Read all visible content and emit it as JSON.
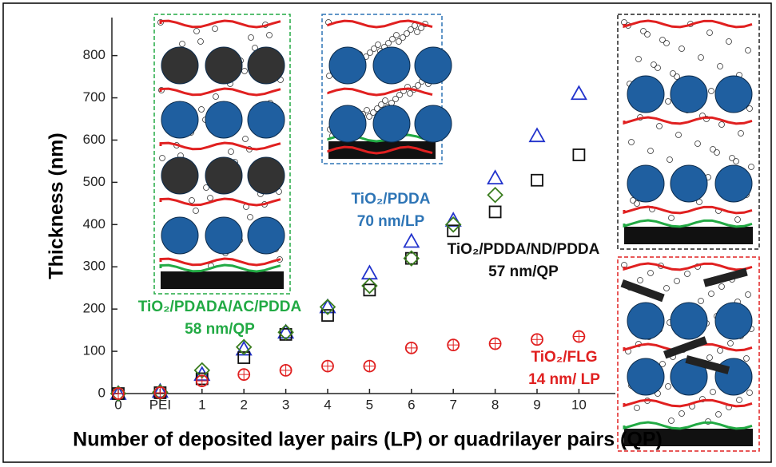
{
  "chart_data": {
    "type": "scatter",
    "x_label": "Number of deposited layer pairs (LP) or quadrilayer pairs (QP)",
    "y_label": "Thickness (nm)",
    "categories": [
      "0",
      "PEI",
      "1",
      "2",
      "3",
      "4",
      "5",
      "6",
      "7",
      "8",
      "9",
      "10"
    ],
    "ylim": [
      0,
      890
    ],
    "yticks": [
      0,
      100,
      200,
      300,
      400,
      500,
      600,
      700,
      800
    ],
    "series": [
      {
        "name": "TiO₂/PDDA",
        "rate": "70 nm/LP",
        "marker": "triangle",
        "color": "#2233cc",
        "label_color": "#2e75b6",
        "values": [
          0,
          5,
          45,
          105,
          145,
          205,
          285,
          360,
          410,
          510,
          610,
          710
        ]
      },
      {
        "name": "TiO₂/PDDA/ND/PDDA",
        "rate": "57 nm/QP",
        "marker": "square",
        "color": "#111111",
        "label_color": "#111111",
        "values": [
          0,
          2,
          35,
          85,
          140,
          185,
          245,
          320,
          385,
          430,
          505,
          565
        ]
      },
      {
        "name": "TiO₂/PDADA/AC/PDDA",
        "rate": "58 nm/QP",
        "marker": "diamond",
        "color": "#3a7d1e",
        "label_color": "#22aa44",
        "values": [
          0,
          3,
          55,
          110,
          145,
          205,
          255,
          320,
          400,
          470,
          null,
          null
        ]
      },
      {
        "name": "TiO₂/FLG",
        "rate": "14 nm/ LP",
        "marker": "circle",
        "color": "#e02020",
        "label_color": "#e02020",
        "values": [
          0,
          2,
          30,
          45,
          55,
          65,
          65,
          108,
          115,
          118,
          128,
          135
        ]
      }
    ]
  }
}
